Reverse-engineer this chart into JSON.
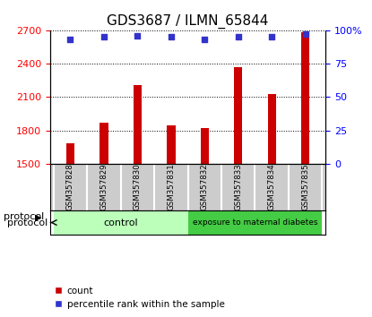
{
  "title": "GDS3687 / ILMN_65844",
  "samples": [
    "GSM357828",
    "GSM357829",
    "GSM357830",
    "GSM357831",
    "GSM357832",
    "GSM357833",
    "GSM357834",
    "GSM357835"
  ],
  "counts": [
    1680,
    1865,
    2210,
    1845,
    1820,
    2370,
    2130,
    2680
  ],
  "percentile_ranks": [
    93,
    95,
    96,
    95,
    93,
    95,
    95,
    97
  ],
  "ylim_left": [
    1500,
    2700
  ],
  "ylim_right": [
    0,
    100
  ],
  "yticks_left": [
    1500,
    1800,
    2100,
    2400,
    2700
  ],
  "yticks_right": [
    0,
    25,
    50,
    75,
    100
  ],
  "bar_color": "#cc0000",
  "dot_color": "#3333cc",
  "bg_color": "#ffffff",
  "sample_bg_color": "#cccccc",
  "protocol_control_color": "#bbffbb",
  "protocol_diabetes_color": "#44cc44",
  "protocol_label": "protocol",
  "control_label": "control",
  "diabetes_label": "exposure to maternal diabetes",
  "control_indices": [
    0,
    1,
    2,
    3
  ],
  "diabetes_indices": [
    4,
    5,
    6,
    7
  ],
  "legend_count_label": "count",
  "legend_percentile_label": "percentile rank within the sample",
  "title_fontsize": 11,
  "tick_fontsize": 8,
  "bar_width": 0.25
}
